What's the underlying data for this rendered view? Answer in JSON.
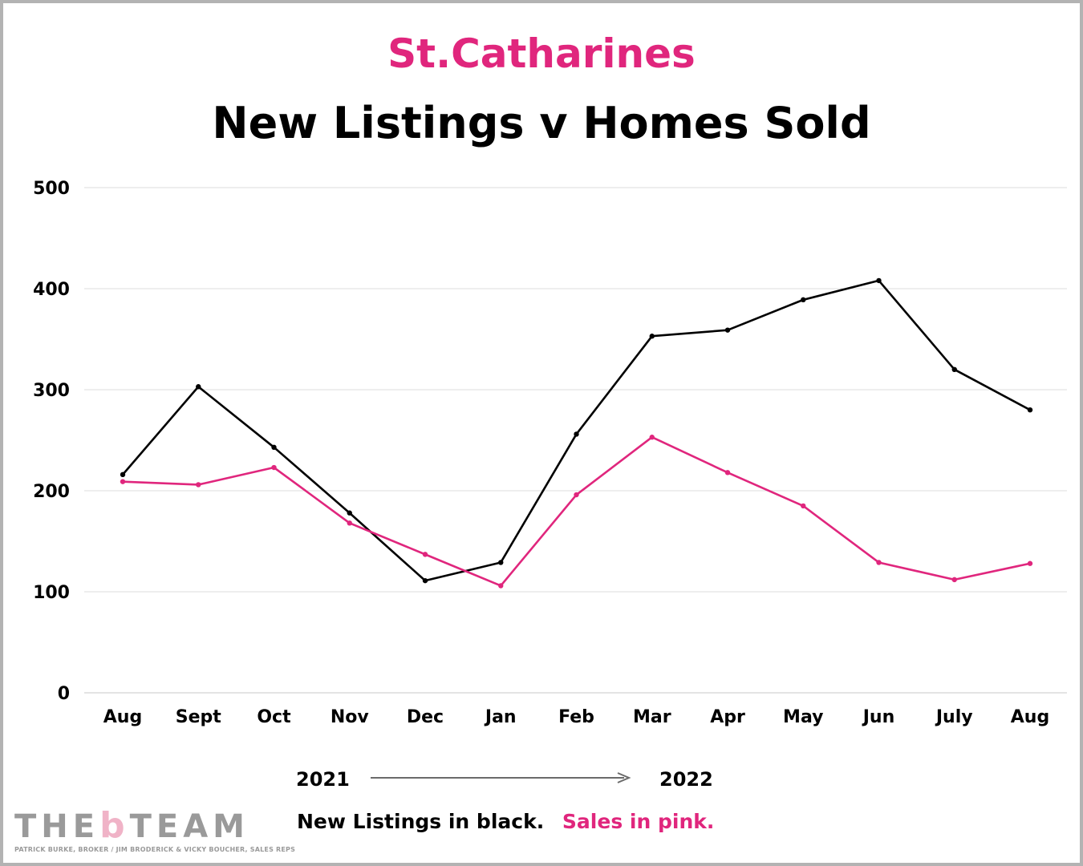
{
  "header": {
    "subtitle": "St.Catharines",
    "title": "New Listings v Homes Sold"
  },
  "years": {
    "start": "2021",
    "end": "2022"
  },
  "legend": {
    "black_text": "New Listings in black.",
    "pink_text": "Sales in pink."
  },
  "logo": {
    "pre": "THE",
    "b": "b",
    "post": "TEAM",
    "tagline": "PATRICK BURKE, BROKER / JIM BRODERICK & VICKY BOUCHER, SALES REPS"
  },
  "colors": {
    "accent": "#e0267d",
    "listings": "#000000",
    "sales": "#e0267d",
    "grid": "#dddddd"
  },
  "chart_data": {
    "type": "line",
    "title": "New Listings v Homes Sold",
    "categories": [
      "Aug",
      "Sept",
      "Oct",
      "Nov",
      "Dec",
      "Jan",
      "Feb",
      "Mar",
      "Apr",
      "May",
      "Jun",
      "July",
      "Aug"
    ],
    "ylim": [
      0,
      500
    ],
    "yticks": [
      0,
      100,
      200,
      300,
      400,
      500
    ],
    "grid": true,
    "series": [
      {
        "color": "#000000",
        "values": [
          216,
          303,
          243,
          178,
          111,
          129,
          256,
          353,
          359,
          389,
          408,
          320,
          280
        ]
      },
      {
        "color": "#e0267d",
        "values": [
          209,
          206,
          223,
          168,
          137,
          106,
          196,
          253,
          218,
          185,
          129,
          112,
          128
        ]
      }
    ]
  }
}
